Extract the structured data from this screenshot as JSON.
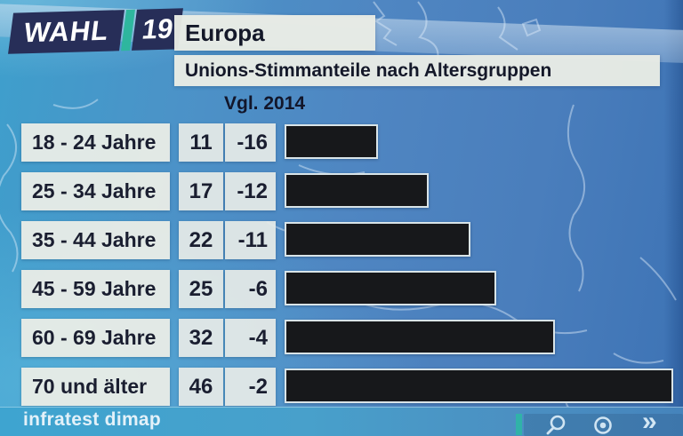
{
  "brand": {
    "name": "WAHL",
    "year": "19"
  },
  "header": {
    "title": "Europa",
    "subtitle": "Unions-Stimmanteile nach Altersgruppen",
    "comparison_label": "Vgl. 2014"
  },
  "rows": [
    {
      "label": "18 - 24 Jahre",
      "value": "11",
      "diff": "-16"
    },
    {
      "label": "25 - 34 Jahre",
      "value": "17",
      "diff": "-12"
    },
    {
      "label": "35 - 44 Jahre",
      "value": "22",
      "diff": "-11"
    },
    {
      "label": "45 - 59 Jahre",
      "value": "25",
      "diff": "-6"
    },
    {
      "label": "60 - 69 Jahre",
      "value": "32",
      "diff": "-4"
    },
    {
      "label": "70 und älter",
      "value": "46",
      "diff": "-2"
    }
  ],
  "chart_data": {
    "type": "bar",
    "orientation": "horizontal",
    "title": "Europa",
    "subtitle": "Unions-Stimmanteile nach Altersgruppen",
    "comparison_label": "Vgl. 2014",
    "categories": [
      "18 - 24 Jahre",
      "25 - 34 Jahre",
      "35 - 44 Jahre",
      "45 - 59 Jahre",
      "60 - 69 Jahre",
      "70 und älter"
    ],
    "values": [
      11,
      17,
      22,
      25,
      32,
      46
    ],
    "diff_vs_2014": [
      -16,
      -12,
      -11,
      -6,
      -4,
      -2
    ],
    "unit": "percent",
    "xlim": [
      0,
      46
    ],
    "axis": "none",
    "grid": false,
    "legend": "none",
    "bar_color": "#17181b",
    "source": "infratest dimap"
  },
  "footer": {
    "source": "infratest dimap"
  },
  "player_controls": {
    "fast_forward_glyph": "»"
  },
  "colors": {
    "logo_navy": "#272e58",
    "logo_teal": "#2eb69e",
    "panel_gray": "#e9ece5",
    "bar_black": "#17181b",
    "bar_border": "#d9e4e8",
    "background_blue": "#4a86c0",
    "footer_cyan": "#45a2cc",
    "text_dark": "#1a1e30",
    "source_text": "#e3f1f9"
  }
}
